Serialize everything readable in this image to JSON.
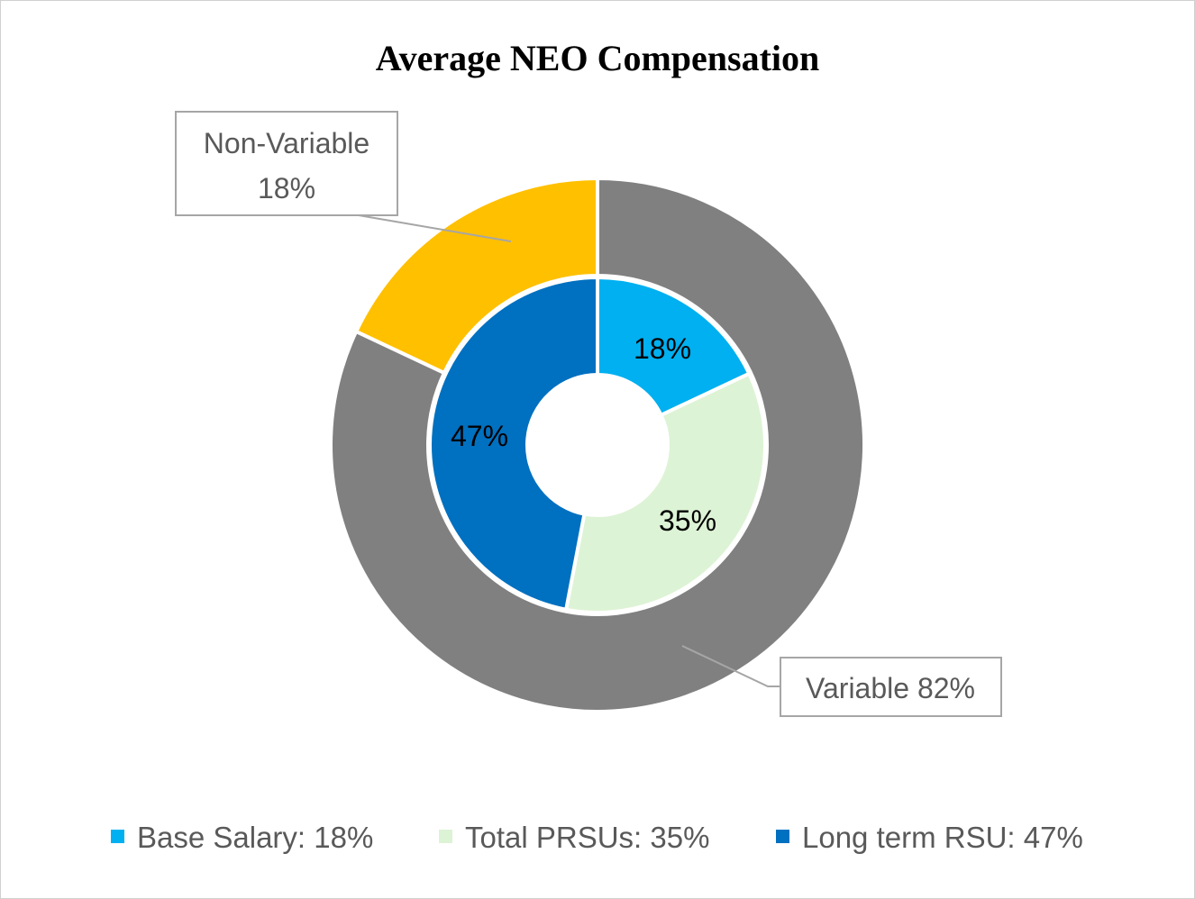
{
  "chart_data": {
    "type": "donut",
    "title": "Average NEO Compensation",
    "outer_ring": [
      {
        "name": "Variable",
        "value": 82,
        "label": "Variable 82%",
        "color": "#808080"
      },
      {
        "name": "Non-Variable",
        "value": 18,
        "label_line1": "Non-Variable",
        "label_line2": "18%",
        "color": "#FFC000"
      }
    ],
    "inner_ring": [
      {
        "name": "Base Salary",
        "value": 18,
        "label": "18%",
        "color": "#00B0F0"
      },
      {
        "name": "Total PRSUs",
        "value": 35,
        "label": "35%",
        "color": "#DDF3D5"
      },
      {
        "name": "Long term RSU",
        "value": 47,
        "label": "47%",
        "color": "#0070C0"
      }
    ],
    "legend": {
      "position": "bottom",
      "entries": [
        {
          "label": "Base Salary: 18%",
          "color": "#00B0F0"
        },
        {
          "label": "Total PRSUs: 35%",
          "color": "#DDF3D5"
        },
        {
          "label": "Long term RSU: 47%",
          "color": "#0070C0"
        }
      ]
    }
  }
}
